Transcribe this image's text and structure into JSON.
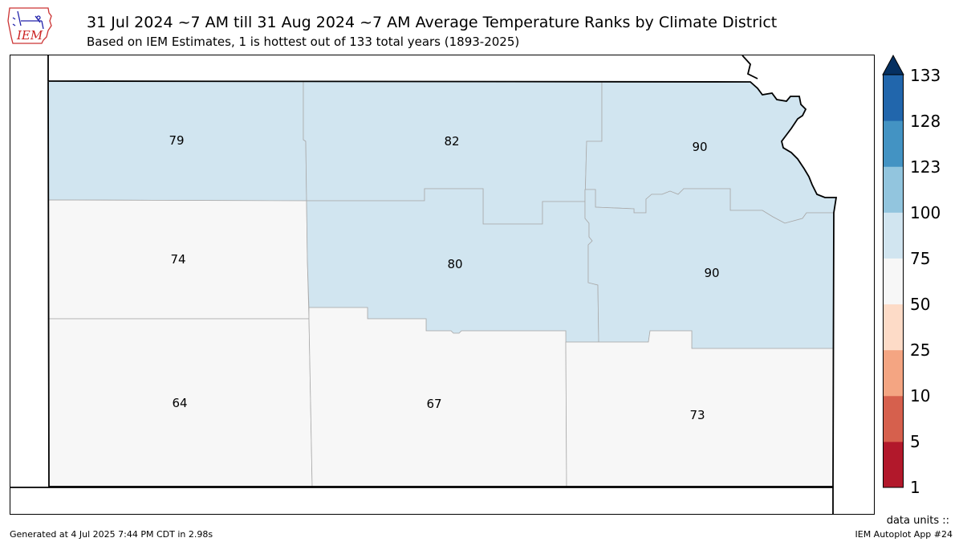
{
  "header": {
    "logo_text": "IEM",
    "title": "31 Jul 2024 ~7 AM till 31 Aug 2024 ~7 AM Average Temperature Ranks by Climate District",
    "subtitle": "Based on IEM Estimates, 1 is hottest out of 133 total years (1893-2025)"
  },
  "map": {
    "districts": [
      {
        "rank": "79",
        "color": "#d1e5f0"
      },
      {
        "rank": "82",
        "color": "#d1e5f0"
      },
      {
        "rank": "90",
        "color": "#d1e5f0"
      },
      {
        "rank": "74",
        "color": "#f7f7f7"
      },
      {
        "rank": "80",
        "color": "#d1e5f0"
      },
      {
        "rank": "90",
        "color": "#d1e5f0"
      },
      {
        "rank": "64",
        "color": "#f7f7f7"
      },
      {
        "rank": "67",
        "color": "#f7f7f7"
      },
      {
        "rank": "73",
        "color": "#f7f7f7"
      }
    ]
  },
  "colorbar": {
    "ticks": [
      "1",
      "5",
      "10",
      "25",
      "50",
      "75",
      "100",
      "123",
      "128",
      "133"
    ],
    "colors": [
      "#b2182b",
      "#d6604d",
      "#f4a582",
      "#fddbc7",
      "#f7f7f7",
      "#d1e5f0",
      "#92c5de",
      "#4393c3",
      "#2166ac",
      "#053061"
    ],
    "extend_color": "#053061"
  },
  "footer": {
    "units": "data units ::",
    "generated": "Generated at 4 Jul 2025 7:44 PM CDT in 2.98s",
    "app": "IEM Autoplot App #24"
  }
}
